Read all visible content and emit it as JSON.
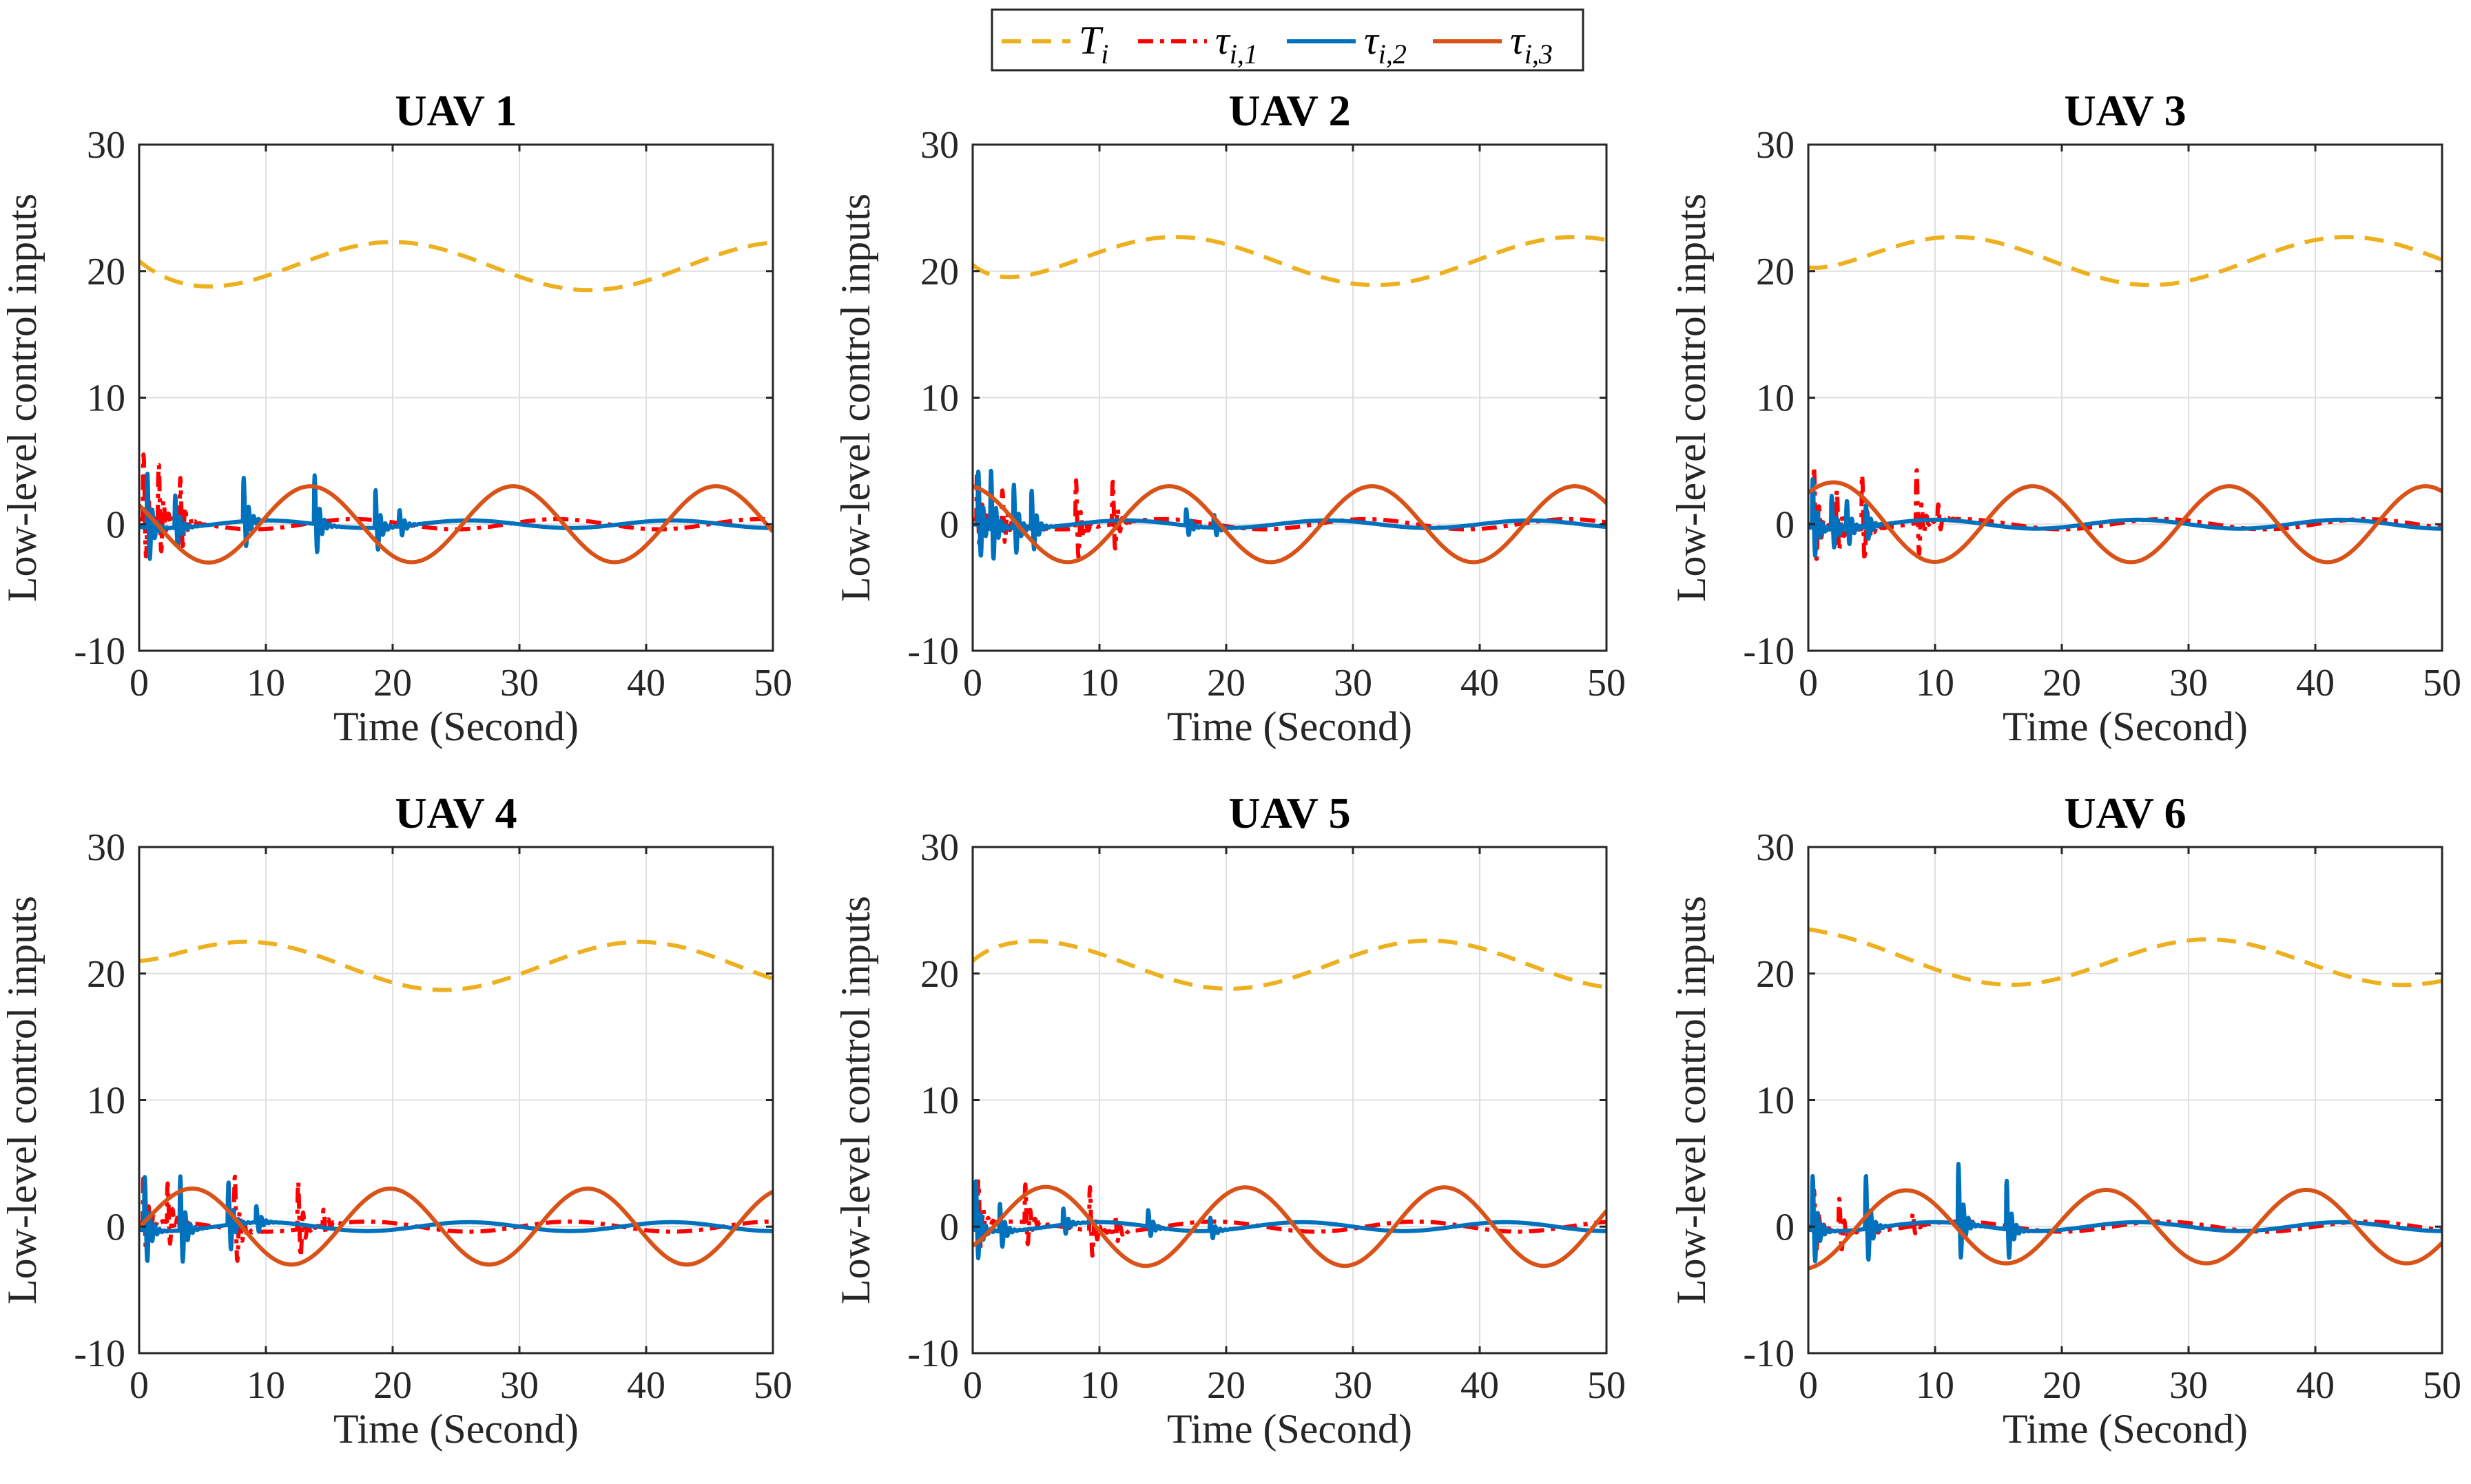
{
  "figure": {
    "ylabel": "Low-level control inputs",
    "xlabel": "Time (Second)"
  },
  "legend": {
    "placement": "top-center",
    "entries": [
      {
        "name": "T",
        "subscript": "i",
        "color": "#EDB120",
        "style": "dashed"
      },
      {
        "name": "τ",
        "subscript": "i,1",
        "color": "#FF0000",
        "style": "dashdot"
      },
      {
        "name": "τ",
        "subscript": "i,2",
        "color": "#0072BD",
        "style": "solid"
      },
      {
        "name": "τ",
        "subscript": "i,3",
        "color": "#D95319",
        "style": "solid"
      }
    ]
  },
  "chart_data": [
    {
      "type": "line",
      "title": "UAV 1",
      "xlabel": "Time (Second)",
      "ylabel": "Low-level control inputs",
      "xlim": [
        0,
        50
      ],
      "ylim": [
        -10,
        30
      ],
      "xticks": [
        0,
        10,
        20,
        30,
        40,
        50
      ],
      "yticks": [
        -10,
        0,
        10,
        20,
        30
      ],
      "grid": true,
      "series": [
        {
          "name": "T_i",
          "base": 20.4,
          "amp": 1.9,
          "period": 31,
          "peak_t": 20,
          "start": 20.8,
          "settle": 3
        },
        {
          "name": "tau_i,1",
          "amp": 0.4,
          "period": 16,
          "peak_t": 17,
          "bursts": [
            [
              0.3,
              6
            ],
            [
              1.5,
              5
            ],
            [
              3.2,
              4
            ]
          ]
        },
        {
          "name": "tau_i,2",
          "amp": 0.3,
          "period": 16,
          "peak_t": 10,
          "bursts": [
            [
              0.6,
              5
            ],
            [
              2.8,
              3
            ],
            [
              8.2,
              4
            ],
            [
              13.8,
              4.5
            ],
            [
              18.6,
              3.5
            ],
            [
              20.5,
              1.5
            ]
          ]
        },
        {
          "name": "tau_i,3",
          "amp": 3,
          "period": 16,
          "peak_t": 29.5,
          "start": 1.5,
          "settle": 3
        }
      ]
    },
    {
      "type": "line",
      "title": "UAV 2",
      "xlabel": "Time (Second)",
      "ylabel": "Low-level control inputs",
      "xlim": [
        0,
        50
      ],
      "ylim": [
        -10,
        30
      ],
      "xticks": [
        0,
        10,
        20,
        30,
        40,
        50
      ],
      "yticks": [
        -10,
        0,
        10,
        20,
        30
      ],
      "grid": true,
      "series": [
        {
          "name": "T_i",
          "base": 20.8,
          "amp": 1.9,
          "period": 31.5,
          "peak_t": 16,
          "start": 20.5,
          "settle": 2
        },
        {
          "name": "tau_i,1",
          "amp": 0.4,
          "period": 16,
          "peak_t": 15,
          "bursts": [
            [
              0.3,
              4.5
            ],
            [
              2.3,
              3
            ],
            [
              8.1,
              4.5
            ],
            [
              11,
              4
            ]
          ]
        },
        {
          "name": "tau_i,2",
          "amp": 0.3,
          "period": 16,
          "peak_t": 12,
          "bursts": [
            [
              0.4,
              5
            ],
            [
              1.4,
              5.5
            ],
            [
              3.2,
              4
            ],
            [
              4.6,
              3.5
            ],
            [
              16.8,
              1.5
            ],
            [
              19,
              1.2
            ]
          ]
        },
        {
          "name": "tau_i,3",
          "amp": 3,
          "period": 16,
          "peak_t": 15.5,
          "start": 3,
          "settle": 3
        }
      ]
    },
    {
      "type": "line",
      "title": "UAV 3",
      "xlabel": "Time (Second)",
      "ylabel": "Low-level control inputs",
      "xlim": [
        0,
        50
      ],
      "ylim": [
        -10,
        30
      ],
      "xticks": [
        0,
        10,
        20,
        30,
        40,
        50
      ],
      "yticks": [
        -10,
        0,
        10,
        20,
        30
      ],
      "grid": true,
      "series": [
        {
          "name": "T_i",
          "base": 20.8,
          "amp": 1.9,
          "period": 31,
          "peak_t": 11.5,
          "start": 20.3,
          "settle": 2
        },
        {
          "name": "tau_i,1",
          "amp": 0.4,
          "period": 16,
          "peak_t": 12,
          "bursts": [
            [
              0.4,
              5.5
            ],
            [
              2.2,
              3.5
            ],
            [
              4.2,
              5
            ],
            [
              8.5,
              5
            ],
            [
              10.2,
              1.5
            ]
          ]
        },
        {
          "name": "tau_i,2",
          "amp": 0.35,
          "period": 16,
          "peak_t": 10,
          "bursts": [
            [
              0.3,
              4.5
            ],
            [
              1.8,
              3
            ],
            [
              3,
              2.5
            ],
            [
              4.5,
              2
            ]
          ]
        },
        {
          "name": "tau_i,3",
          "amp": 3,
          "period": 15.5,
          "peak_t": 17.7,
          "start": 2.5,
          "settle": 3
        }
      ]
    },
    {
      "type": "line",
      "title": "UAV 4",
      "xlabel": "Time (Second)",
      "ylabel": "Low-level control inputs",
      "xlim": [
        0,
        50
      ],
      "ylim": [
        -10,
        30
      ],
      "xticks": [
        0,
        10,
        20,
        30,
        40,
        50
      ],
      "yticks": [
        -10,
        0,
        10,
        20,
        30
      ],
      "grid": true,
      "series": [
        {
          "name": "T_i",
          "base": 20.6,
          "amp": 1.9,
          "period": 31,
          "peak_t": 8.5,
          "start": 21,
          "settle": 2
        },
        {
          "name": "tau_i,1",
          "amp": 0.4,
          "period": 16,
          "peak_t": 18,
          "bursts": [
            [
              0.3,
              4.5
            ],
            [
              2.2,
              3.5
            ],
            [
              7.5,
              5
            ],
            [
              12.5,
              4.5
            ],
            [
              14.5,
              1.5
            ]
          ]
        },
        {
          "name": "tau_i,2",
          "amp": 0.35,
          "period": 16,
          "peak_t": 10,
          "bursts": [
            [
              0.4,
              5
            ],
            [
              3.2,
              5
            ],
            [
              7,
              4
            ],
            [
              9.2,
              1.5
            ]
          ]
        },
        {
          "name": "tau_i,3",
          "amp": 3,
          "period": 15.6,
          "peak_t": 19.8,
          "start": 0,
          "settle": 1
        }
      ]
    },
    {
      "type": "line",
      "title": "UAV 5",
      "xlabel": "Time (Second)",
      "ylabel": "Low-level control inputs",
      "xlim": [
        0,
        50
      ],
      "ylim": [
        -10,
        30
      ],
      "xticks": [
        0,
        10,
        20,
        30,
        40,
        50
      ],
      "yticks": [
        -10,
        0,
        10,
        20,
        30
      ],
      "grid": true,
      "series": [
        {
          "name": "T_i",
          "base": 20.7,
          "amp": 1.9,
          "period": 31.5,
          "peak_t": 4.5,
          "start": 21,
          "settle": 1.5
        },
        {
          "name": "tau_i,1",
          "amp": 0.4,
          "period": 16,
          "peak_t": 19,
          "bursts": [
            [
              0.4,
              4
            ],
            [
              4.1,
              3.5
            ],
            [
              9.2,
              4
            ],
            [
              11.2,
              1.5
            ]
          ]
        },
        {
          "name": "tau_i,2",
          "amp": 0.35,
          "period": 16,
          "peak_t": 10,
          "bursts": [
            [
              0.2,
              4.5
            ],
            [
              2.1,
              2.5
            ],
            [
              7.1,
              1.5
            ],
            [
              13.8,
              1.5
            ],
            [
              18.7,
              1.2
            ]
          ]
        },
        {
          "name": "tau_i,3",
          "amp": 3.1,
          "period": 15.7,
          "peak_t": 21.5,
          "start": -1.5,
          "settle": 2
        }
      ]
    },
    {
      "type": "line",
      "title": "UAV 6",
      "xlabel": "Time (Second)",
      "ylabel": "Low-level control inputs",
      "xlim": [
        0,
        50
      ],
      "ylim": [
        -10,
        30
      ],
      "xticks": [
        0,
        10,
        20,
        30,
        40,
        50
      ],
      "yticks": [
        -10,
        0,
        10,
        20,
        30
      ],
      "grid": true,
      "series": [
        {
          "name": "T_i",
          "base": 20.9,
          "amp": 1.8,
          "period": 31,
          "peak_t": 31.5,
          "start": 23.5,
          "settle": 4
        },
        {
          "name": "tau_i,1",
          "amp": 0.4,
          "period": 16,
          "peak_t": 12,
          "bursts": [
            [
              0.4,
              3.5
            ],
            [
              2.4,
              3
            ],
            [
              4.5,
              2.5
            ],
            [
              8.2,
              1.2
            ]
          ]
        },
        {
          "name": "tau_i,2",
          "amp": 0.35,
          "period": 16,
          "peak_t": 10,
          "bursts": [
            [
              0.3,
              5
            ],
            [
              4.5,
              5
            ],
            [
              11.8,
              5.5
            ],
            [
              15.6,
              4.5
            ]
          ]
        },
        {
          "name": "tau_i,3",
          "amp": 2.9,
          "period": 15.8,
          "peak_t": 23.5,
          "start": -3.3,
          "settle": 3
        }
      ]
    }
  ]
}
